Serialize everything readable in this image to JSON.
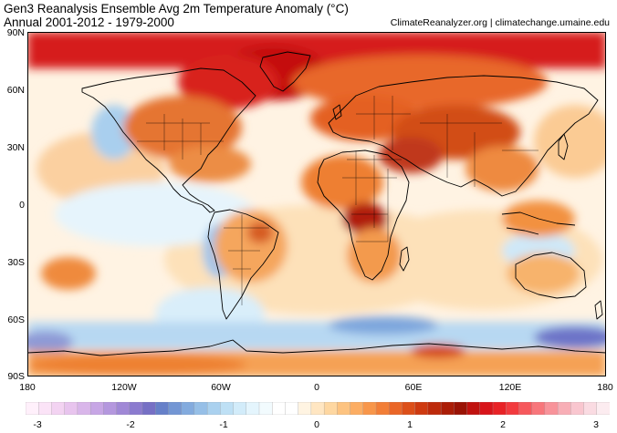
{
  "header": {
    "title": "Gen3 Reanalysis Ensemble Avg 2m Temperature Anomaly (°C)",
    "subtitle": "Annual 2001-2012 - 1979-2000",
    "credit": "ClimateReanalyzer.org | climatechange.umaine.edu"
  },
  "axes": {
    "lat_labels": [
      "90N",
      "60N",
      "30N",
      "0",
      "30S",
      "60S",
      "90S"
    ],
    "lon_labels": [
      "180",
      "120W",
      "60W",
      "0",
      "60E",
      "120E",
      "180"
    ]
  },
  "colorbar": {
    "labels": [
      "-3",
      "-2",
      "-1",
      "0",
      "1",
      "2",
      "3"
    ],
    "colors": [
      "#fff0fb",
      "#fbe3f7",
      "#f3d3f2",
      "#e8c4ee",
      "#d9b6ea",
      "#c7a6e5",
      "#b497de",
      "#a088d6",
      "#8b7bcf",
      "#7670c5",
      "#6680c9",
      "#7396d4",
      "#83abde",
      "#96bfe7",
      "#aad1ef",
      "#bee0f5",
      "#d2ecfa",
      "#e4f5fd",
      "#f2fbfe",
      "#ffffff",
      "#ffffff",
      "#fff4e2",
      "#ffe6c2",
      "#fed7a1",
      "#fdc380",
      "#fcad63",
      "#f8964a",
      "#f27e37",
      "#ea6627",
      "#dc4f19",
      "#ce3a10",
      "#bd2a0b",
      "#ab1d07",
      "#9a1305",
      "#c0120f",
      "#d8141a",
      "#e82226",
      "#f23a3e",
      "#f6585c",
      "#f8767b",
      "#f8939a",
      "#f8aeb6",
      "#f9c6cf",
      "#fadbe2",
      "#fcecf0"
    ]
  },
  "regions": [
    {
      "name": "arctic",
      "color": "#d7161b"
    },
    {
      "name": "greenland",
      "color": "#c4100d"
    },
    {
      "name": "siberia",
      "color": "#e8682a"
    },
    {
      "name": "asia-central",
      "color": "#d24d18"
    },
    {
      "name": "north-america",
      "color": "#e0561f"
    },
    {
      "name": "africa",
      "color": "#f08a3c"
    },
    {
      "name": "central-africa",
      "color": "#b01e0a"
    },
    {
      "name": "europe",
      "color": "#e46023"
    },
    {
      "name": "south-america",
      "color": "#f4a45a"
    },
    {
      "name": "australia",
      "color": "#f8b46c"
    },
    {
      "name": "antarctica",
      "color": "#f5a155"
    },
    {
      "name": "southern-ocean",
      "color": "#aacfee"
    },
    {
      "name": "east-pacific-cool",
      "color": "#d6ecf9"
    },
    {
      "name": "warm-ocean",
      "color": "#fde1b9"
    }
  ]
}
